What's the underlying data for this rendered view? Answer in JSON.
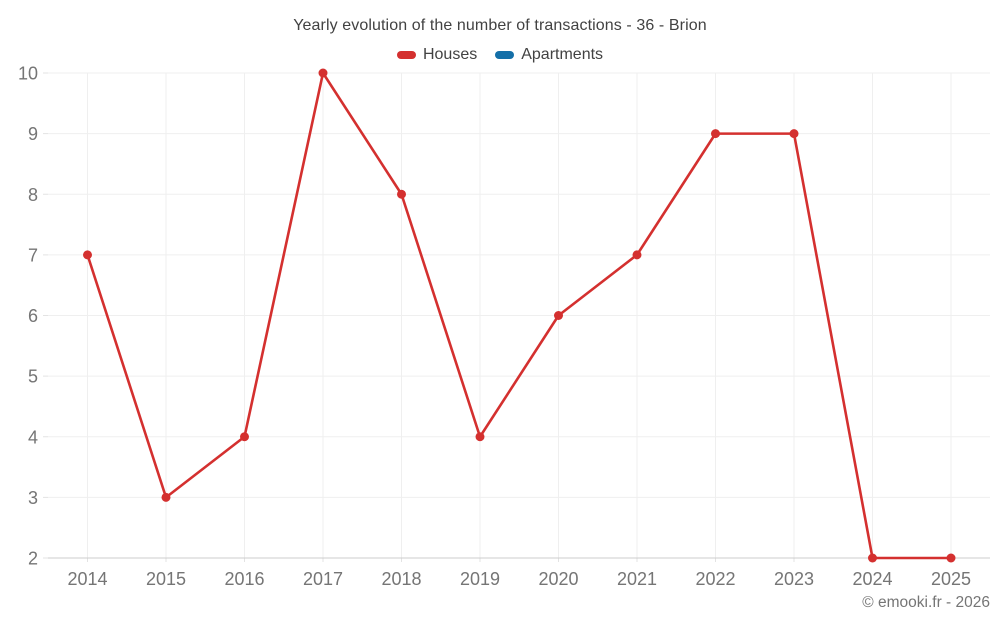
{
  "page": {
    "background": "#ffffff",
    "copyright": "© emooki.fr - 2026"
  },
  "chart_data": {
    "type": "line",
    "title": "Yearly evolution of the number of transactions - 36 - Brion",
    "categories": [
      "2014",
      "2015",
      "2016",
      "2017",
      "2018",
      "2019",
      "2020",
      "2021",
      "2022",
      "2023",
      "2024",
      "2025"
    ],
    "series": [
      {
        "name": "Houses",
        "color": "#d4302f",
        "values": [
          7,
          3,
          4,
          10,
          8,
          4,
          6,
          7,
          9,
          9,
          2,
          2
        ]
      },
      {
        "name": "Apartments",
        "color": "#146fa8",
        "values": []
      }
    ],
    "xlabel": "",
    "ylabel": "",
    "ylim": [
      2,
      10
    ],
    "y_ticks": [
      2,
      3,
      4,
      5,
      6,
      7,
      8,
      9,
      10
    ],
    "grid": true,
    "legend_position": "top",
    "colors": {
      "grid_line": "#efefef",
      "axis_line": "#cccccc",
      "tick_line": "#e3e3e3",
      "axis_label": "#757575",
      "title_text": "#424242"
    },
    "marker_radius": 4.5,
    "line_width": 2.6
  }
}
